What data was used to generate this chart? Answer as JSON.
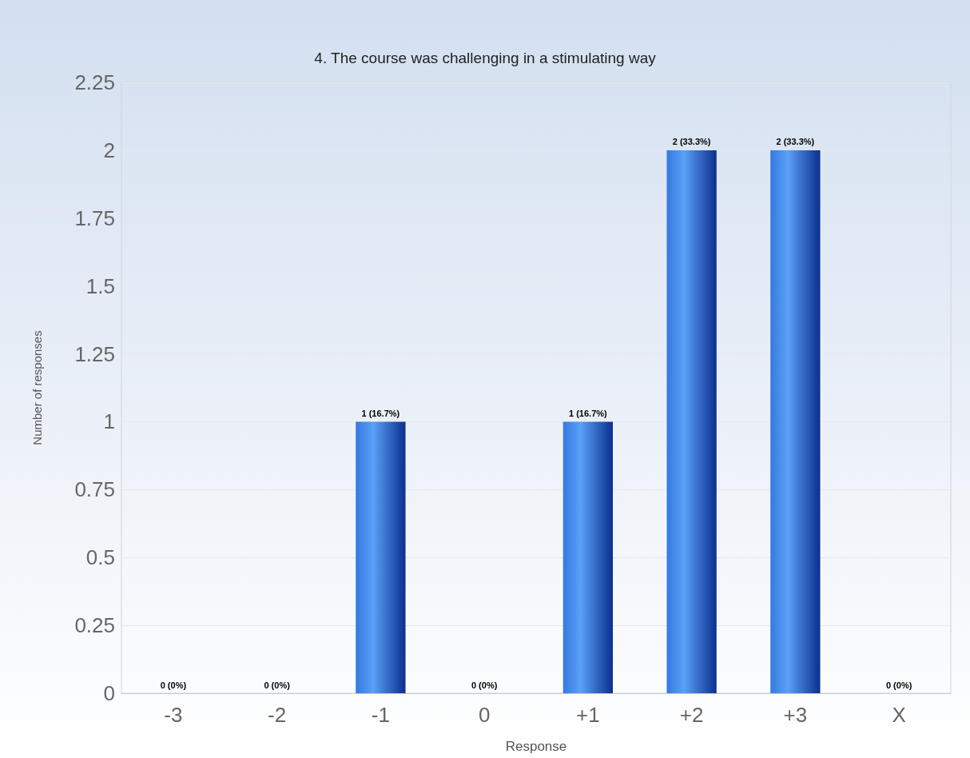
{
  "chart_data": {
    "type": "bar",
    "title": "4. The course was challenging in a stimulating way",
    "xlabel": "Response",
    "ylabel": "Number of responses",
    "categories": [
      "-3",
      "-2",
      "-1",
      "0",
      "+1",
      "+2",
      "+3",
      "X"
    ],
    "values": [
      0,
      0,
      1,
      0,
      1,
      2,
      2,
      0
    ],
    "value_labels": [
      "0 (0%)",
      "0 (0%)",
      "1 (16.7%)",
      "0 (0%)",
      "1 (16.7%)",
      "2 (33.3%)",
      "2 (33.3%)",
      "0 (0%)"
    ],
    "color": "#3579e0",
    "ylim": [
      0,
      2.25
    ],
    "yticks": [
      0,
      0.25,
      0.5,
      0.75,
      1,
      1.25,
      1.5,
      1.75,
      2,
      2.25
    ],
    "grid": "y"
  }
}
